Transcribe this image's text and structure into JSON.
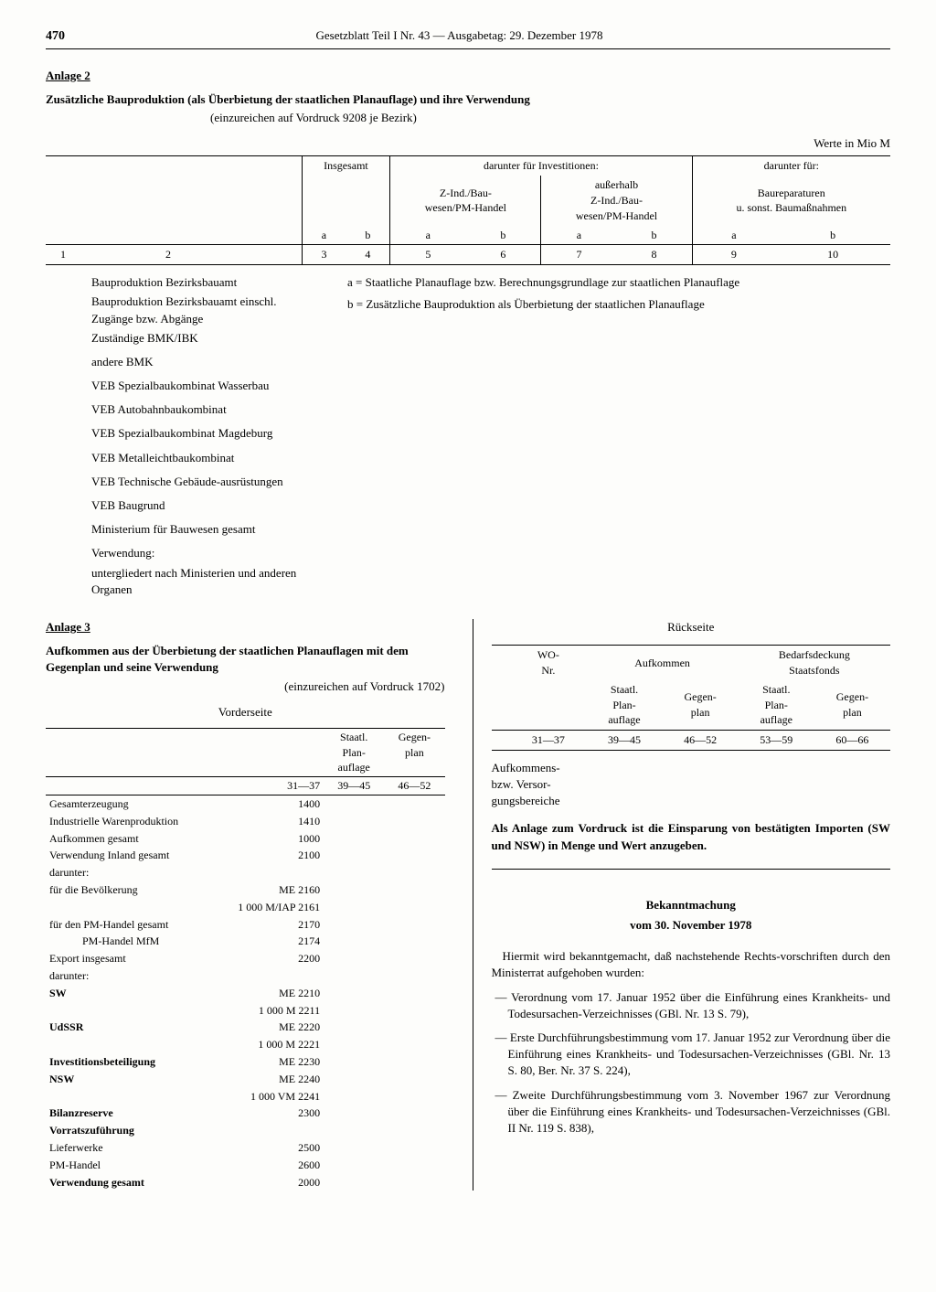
{
  "header": {
    "page_num": "470",
    "title": "Gesetzblatt Teil I Nr. 43 — Ausgabetag: 29. Dezember 1978"
  },
  "anlage2": {
    "label": "Anlage 2",
    "title": "Zusätzliche Bauproduktion (als Überbietung der staatlichen Planauflage) und ihre Verwendung",
    "subtitle": "(einzureichen auf Vordruck 9208 je Bezirk)",
    "werte": "Werte in Mio M",
    "table_headers": {
      "insgesamt": "Insgesamt",
      "darunter_inv": "darunter für Investitionen:",
      "z_ind": "Z-Ind./Bau-\nwesen/PM-Handel",
      "ausserhalb": "außerhalb\nZ-Ind./Bau-\nwesen/PM-Handel",
      "darunter_fuer": "darunter für:",
      "baurep": "Baureparaturen\nu. sonst. Baumaßnahmen",
      "a": "a",
      "b": "b",
      "row1": "1",
      "row2_1": "2",
      "row2_3": "3",
      "row2_4": "4",
      "row2_5": "5",
      "row2_6": "6",
      "row2_7": "7",
      "row2_8": "8",
      "row2_9": "9",
      "row2_10": "10"
    },
    "left_items": [
      "Bauproduktion Bezirksbauamt",
      "Bauproduktion Bezirksbauamt einschl. Zugänge bzw. Abgänge",
      "Zuständige BMK/IBK",
      "andere BMK",
      "VEB Spezialbaukombinat Wasserbau",
      "VEB Autobahnbaukombinat",
      "VEB Spezialbaukombinat Magdeburg",
      "VEB Metalleichtbaukombinat",
      "VEB Technische Gebäude-ausrüstungen",
      "VEB Baugrund",
      "Ministerium für Bauwesen gesamt",
      "Verwendung:",
      "untergliedert nach Ministerien und anderen Organen"
    ],
    "legend_a": "a = Staatliche Planauflage bzw. Berechnungsgrundlage zur staatlichen Planauflage",
    "legend_b": "b = Zusätzliche Bauproduktion als Überbietung der staatlichen Planauflage"
  },
  "anlage3": {
    "label": "Anlage 3",
    "title": "Aufkommen aus der Überbietung der staatlichen Planauflagen mit dem Gegenplan und seine Verwendung",
    "subtitle": "(einzureichen auf Vordruck 1702)",
    "vorderseite": "Vorderseite",
    "rueckseite": "Rückseite",
    "col_staatl": "Staatl.\nPlan-\nauflage",
    "col_gegen": "Gegen-\nplan",
    "range1": "31—37",
    "range2": "39—45",
    "range3": "46—52",
    "rows": [
      {
        "label": "Gesamterzeugung",
        "code": "1400"
      },
      {
        "label": "Industrielle Warenproduktion",
        "code": "1410"
      },
      {
        "label": "Aufkommen gesamt",
        "code": "1000"
      },
      {
        "label": "Verwendung Inland gesamt",
        "code": "2100"
      },
      {
        "label": "darunter:",
        "code": ""
      },
      {
        "label": "für die Bevölkerung",
        "code": "ME 2160",
        "indent": true
      },
      {
        "label": "",
        "code": "1 000 M/IAP 2161",
        "align": "right"
      },
      {
        "label": "für den PM-Handel gesamt",
        "code": "2170",
        "indent": true
      },
      {
        "label": "PM-Handel MfM",
        "code": "2174",
        "indent2": true
      },
      {
        "label": "Export insgesamt",
        "code": "2200"
      },
      {
        "label": "darunter:",
        "code": ""
      },
      {
        "label": "SW",
        "code": "ME 2210",
        "indent": true,
        "bold": true
      },
      {
        "label": "",
        "code": "1 000 M 2211",
        "align": "right"
      },
      {
        "label": "UdSSR",
        "code": "ME 2220",
        "indent": true,
        "bold": true
      },
      {
        "label": "",
        "code": "1 000 M 2221",
        "align": "right"
      },
      {
        "label": "Investitionsbeteiligung",
        "code": "ME 2230",
        "indent": true,
        "bold": true
      },
      {
        "label": "NSW",
        "code": "ME 2240",
        "indent": true,
        "bold": true
      },
      {
        "label": "",
        "code": "1 000 VM 2241",
        "align": "right"
      },
      {
        "label": "Bilanzreserve",
        "code": "2300",
        "bold": true
      },
      {
        "label": "Vorratszuführung",
        "code": "",
        "bold": true
      },
      {
        "label": "Lieferwerke",
        "code": "2500",
        "indent": true
      },
      {
        "label": "PM-Handel",
        "code": "2600",
        "indent": true
      },
      {
        "label": "Verwendung gesamt",
        "code": "2000",
        "bold": true
      }
    ],
    "back_headers": {
      "wo": "WO-\nNr.",
      "aufkommen": "Aufkommen",
      "bedarf": "Bedarfsdeckung\nStaatsfonds",
      "r1": "31—37",
      "r2": "39—45",
      "r3": "46—52",
      "r4": "53—59",
      "r5": "60—66"
    },
    "back_label": "Aufkommens-\nbzw. Versor-\ngungsbereiche",
    "back_note": "Als Anlage zum Vordruck ist die Einsparung von bestätigten Importen (SW und NSW) in Menge und Wert anzugeben."
  },
  "bekannt": {
    "title": "Bekanntmachung",
    "date": "vom 30. November 1978",
    "intro": "Hiermit wird bekanntgemacht, daß nachstehende Rechts-vorschriften durch den Ministerrat aufgehoben wurden:",
    "items": [
      "— Verordnung vom 17. Januar 1952 über die Einführung eines Krankheits- und Todesursachen-Verzeichnisses (GBl. Nr. 13 S. 79),",
      "— Erste Durchführungsbestimmung vom 17. Januar 1952 zur Verordnung über die Einführung eines Krankheits- und Todesursachen-Verzeichnisses (GBl. Nr. 13 S. 80, Ber. Nr. 37 S. 224),",
      "— Zweite Durchführungsbestimmung vom 3. November 1967 zur Verordnung über die Einführung eines Krankheits- und Todesursachen-Verzeichnisses (GBl. II Nr. 119 S. 838),"
    ]
  }
}
